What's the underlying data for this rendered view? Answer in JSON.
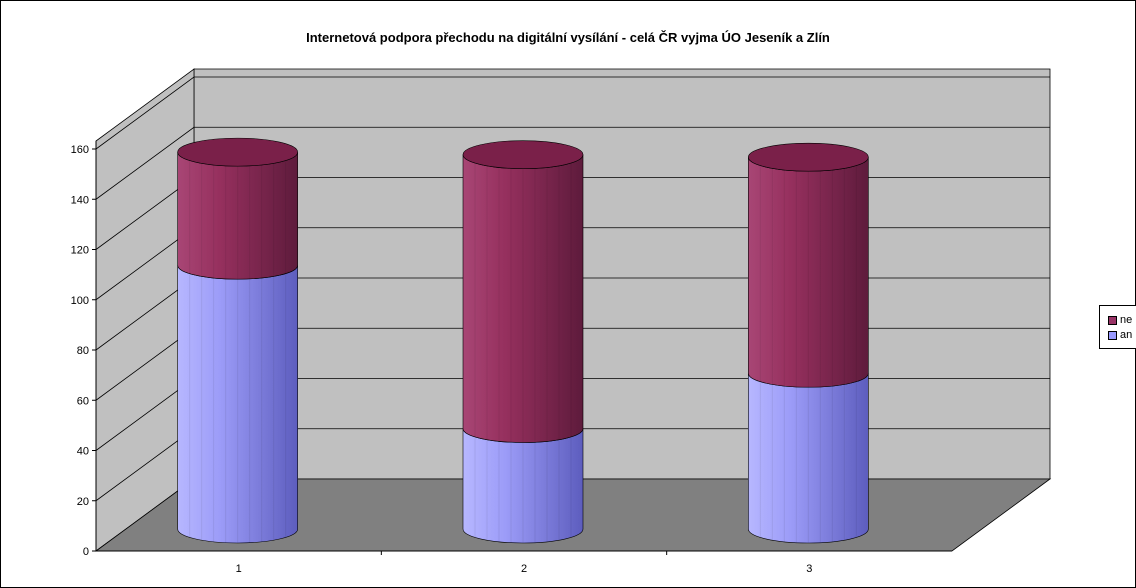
{
  "chart_data": {
    "type": "bar",
    "stacked": true,
    "style": "3d-cylinder",
    "title": "Internetová podpora přechodu na digitální vysílání - celá ČR vyjma ÚO Jeseník a Zlín",
    "categories": [
      "1",
      "2",
      "3"
    ],
    "series": [
      {
        "name": "an",
        "color": "#9999ff",
        "values": [
          105,
          40,
          62
        ]
      },
      {
        "name": "ne",
        "color": "#993366",
        "values": [
          45,
          109,
          86
        ]
      }
    ],
    "ylim": [
      0,
      160
    ],
    "yticks": [
      "0",
      "20",
      "40",
      "60",
      "80",
      "100",
      "120",
      "140",
      "160"
    ],
    "grid": true,
    "wall_color": "#c0c0c0",
    "floor_color": "#808080",
    "legend_position": "right"
  },
  "legend": [
    {
      "label": "ne",
      "color": "#993366"
    },
    {
      "label": "an",
      "color": "#9999ff"
    }
  ]
}
